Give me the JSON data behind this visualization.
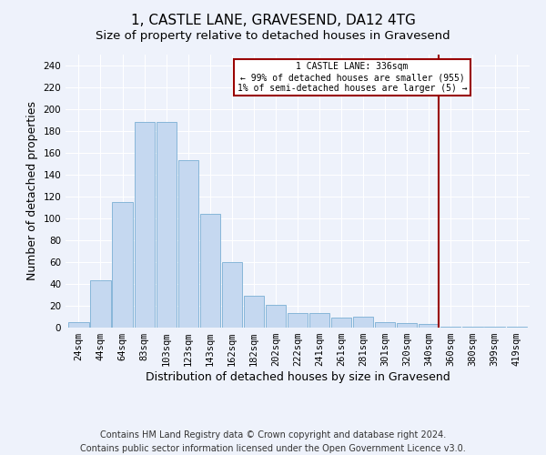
{
  "title": "1, CASTLE LANE, GRAVESEND, DA12 4TG",
  "subtitle": "Size of property relative to detached houses in Gravesend",
  "xlabel": "Distribution of detached houses by size in Gravesend",
  "ylabel": "Number of detached properties",
  "categories": [
    "24sqm",
    "44sqm",
    "64sqm",
    "83sqm",
    "103sqm",
    "123sqm",
    "143sqm",
    "162sqm",
    "182sqm",
    "202sqm",
    "222sqm",
    "241sqm",
    "261sqm",
    "281sqm",
    "301sqm",
    "320sqm",
    "340sqm",
    "360sqm",
    "380sqm",
    "399sqm",
    "419sqm"
  ],
  "values": [
    5,
    43,
    115,
    188,
    188,
    153,
    104,
    60,
    29,
    21,
    13,
    13,
    9,
    10,
    5,
    4,
    3,
    1,
    1,
    1,
    1
  ],
  "bar_color": "#c5d8f0",
  "bar_edge_color": "#7aafd4",
  "vline_x_index": 16,
  "vline_color": "#990000",
  "annotation_text": "1 CASTLE LANE: 336sqm\n← 99% of detached houses are smaller (955)\n1% of semi-detached houses are larger (5) →",
  "annotation_box_color": "#ffffff",
  "annotation_box_edge_color": "#990000",
  "ylim": [
    0,
    250
  ],
  "yticks": [
    0,
    20,
    40,
    60,
    80,
    100,
    120,
    140,
    160,
    180,
    200,
    220,
    240
  ],
  "footer_line1": "Contains HM Land Registry data © Crown copyright and database right 2024.",
  "footer_line2": "Contains public sector information licensed under the Open Government Licence v3.0.",
  "background_color": "#eef2fb",
  "title_fontsize": 11,
  "subtitle_fontsize": 9.5,
  "label_fontsize": 9,
  "tick_fontsize": 7.5,
  "footer_fontsize": 7
}
